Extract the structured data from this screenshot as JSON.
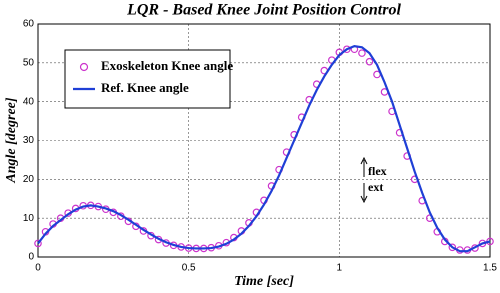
{
  "chart_data": {
    "type": "line",
    "title": "LQR - Based Knee Joint Position Control",
    "x_label": "Time [sec]",
    "y_label": "Angle [degree]",
    "x": [
      0,
      0.025,
      0.05,
      0.075,
      0.1,
      0.125,
      0.15,
      0.175,
      0.2,
      0.225,
      0.25,
      0.275,
      0.3,
      0.325,
      0.35,
      0.375,
      0.4,
      0.425,
      0.45,
      0.475,
      0.5,
      0.525,
      0.55,
      0.575,
      0.6,
      0.625,
      0.65,
      0.675,
      0.7,
      0.725,
      0.75,
      0.775,
      0.8,
      0.825,
      0.85,
      0.875,
      0.9,
      0.925,
      0.95,
      0.975,
      1,
      1.025,
      1.05,
      1.075,
      1.1,
      1.125,
      1.15,
      1.175,
      1.2,
      1.225,
      1.25,
      1.275,
      1.3,
      1.325,
      1.35,
      1.375,
      1.4,
      1.425,
      1.45,
      1.475,
      1.5
    ],
    "series": [
      {
        "name": "Exoskeleton Knee angle",
        "color": "#cc33cc",
        "marker": "circle",
        "values": [
          3.5,
          6.5,
          8.5,
          10,
          11.3,
          12.5,
          13.2,
          13.3,
          13,
          12.3,
          11.5,
          10.5,
          9.2,
          7.9,
          6.7,
          5.5,
          4.5,
          3.6,
          3,
          2.6,
          2.3,
          2.2,
          2.2,
          2.4,
          2.9,
          3.7,
          5,
          6.7,
          8.8,
          11.5,
          14.6,
          18.3,
          22.5,
          27,
          31.5,
          36,
          40.5,
          44.5,
          48,
          50.7,
          52.7,
          53.5,
          53.5,
          52.5,
          50.3,
          47,
          42.5,
          37.5,
          32,
          26,
          20,
          14.5,
          10,
          6.5,
          4,
          2.5,
          1.8,
          1.8,
          2.3,
          3.5,
          4
        ]
      },
      {
        "name": "Ref. Knee angle",
        "color": "#1f3fd6",
        "marker": "line",
        "values": [
          3.5,
          6,
          8,
          9.5,
          11,
          12.2,
          13,
          13.3,
          13,
          12.5,
          11.8,
          10.8,
          9.6,
          8.3,
          7,
          5.8,
          4.7,
          3.8,
          3.1,
          2.6,
          2.3,
          2.2,
          2.2,
          2.3,
          2.7,
          3.4,
          4.5,
          6,
          8,
          10.5,
          13.5,
          17,
          21,
          25.5,
          30,
          34.5,
          39,
          43,
          46.5,
          49.5,
          52,
          53.5,
          54.3,
          54,
          52.5,
          49.5,
          45,
          40,
          34,
          28,
          22,
          16.5,
          11.5,
          7.5,
          4.5,
          2.5,
          1.5,
          1.5,
          2.5,
          3.5,
          4
        ]
      }
    ],
    "xlim": [
      0,
      1.5
    ],
    "xticks": [
      0,
      0.5,
      1,
      1.5
    ],
    "ylim": [
      0,
      60
    ],
    "yticks": [
      0,
      10,
      20,
      30,
      40,
      50,
      60
    ],
    "grid": true,
    "legend": "upper left",
    "annotations": [
      "flex",
      "ext"
    ]
  }
}
